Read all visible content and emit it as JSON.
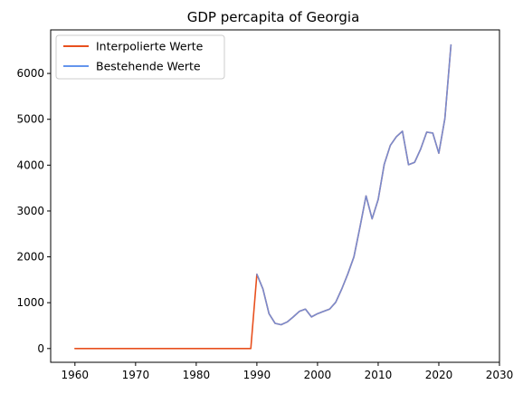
{
  "chart_data": {
    "type": "line",
    "title": "GDP percapita of Georgia",
    "xlabel": "",
    "ylabel": "",
    "xlim": [
      1956,
      2030
    ],
    "ylim": [
      -300,
      6950
    ],
    "xticks": [
      1960,
      1970,
      1980,
      1990,
      2000,
      2010,
      2020,
      2030
    ],
    "yticks": [
      0,
      1000,
      2000,
      3000,
      4000,
      5000,
      6000
    ],
    "grid": false,
    "legend_position": "top-left",
    "series": [
      {
        "name": "Interpolierte Werte",
        "color": "#e8501e",
        "x": [
          1960,
          1961,
          1962,
          1963,
          1964,
          1965,
          1966,
          1967,
          1968,
          1969,
          1970,
          1971,
          1972,
          1973,
          1974,
          1975,
          1976,
          1977,
          1978,
          1979,
          1980,
          1981,
          1982,
          1983,
          1984,
          1985,
          1986,
          1987,
          1988,
          1989,
          1990,
          1991,
          1992,
          1993,
          1994,
          1995,
          1996,
          1997,
          1998,
          1999,
          2000,
          2001,
          2002,
          2003,
          2004,
          2005,
          2006,
          2007,
          2008,
          2009,
          2010,
          2011,
          2012,
          2013,
          2014,
          2015,
          2016,
          2017,
          2018,
          2019,
          2020,
          2021,
          2022
        ],
        "y": [
          0,
          0,
          0,
          0,
          0,
          0,
          0,
          0,
          0,
          0,
          0,
          0,
          0,
          0,
          0,
          0,
          0,
          0,
          0,
          0,
          0,
          0,
          0,
          0,
          0,
          0,
          0,
          0,
          0,
          0,
          1620,
          1300,
          760,
          550,
          520,
          580,
          690,
          810,
          860,
          690,
          760,
          810,
          860,
          1010,
          1300,
          1630,
          2000,
          2650,
          3330,
          2830,
          3250,
          4020,
          4430,
          4620,
          4740,
          4010,
          4060,
          4350,
          4720,
          4700,
          4260,
          5020,
          6620
        ]
      },
      {
        "name": "Bestehende Werte",
        "color": "#6495ed",
        "x": [
          1990,
          1991,
          1992,
          1993,
          1994,
          1995,
          1996,
          1997,
          1998,
          1999,
          2000,
          2001,
          2002,
          2003,
          2004,
          2005,
          2006,
          2007,
          2008,
          2009,
          2010,
          2011,
          2012,
          2013,
          2014,
          2015,
          2016,
          2017,
          2018,
          2019,
          2020,
          2021,
          2022
        ],
        "y": [
          1620,
          1300,
          760,
          550,
          520,
          580,
          690,
          810,
          860,
          690,
          760,
          810,
          860,
          1010,
          1300,
          1630,
          2000,
          2650,
          3330,
          2830,
          3250,
          4020,
          4430,
          4620,
          4740,
          4010,
          4060,
          4350,
          4720,
          4700,
          4260,
          5020,
          6620
        ]
      }
    ]
  }
}
